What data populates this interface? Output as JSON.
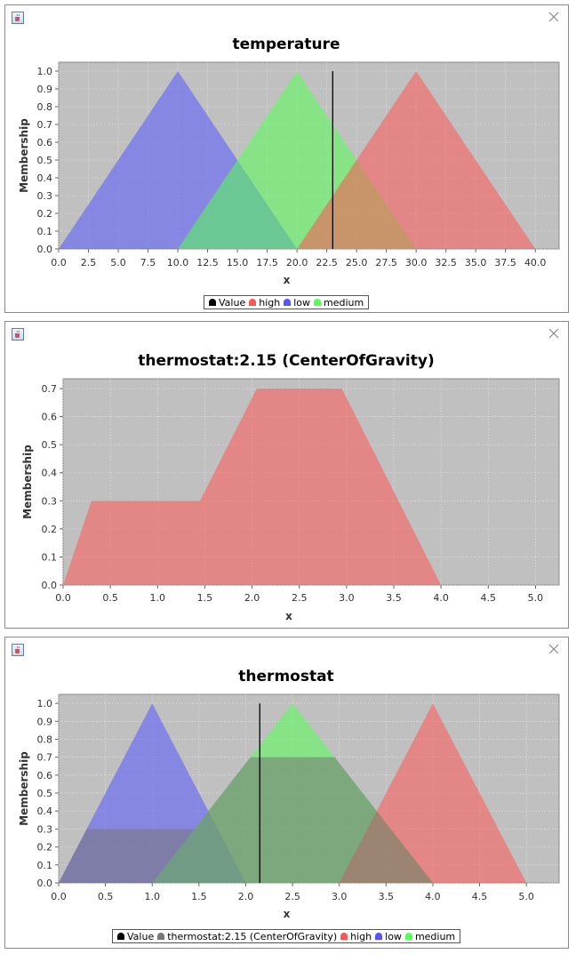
{
  "colors": {
    "high": "#ff5555",
    "low": "#5555ff",
    "medium": "#55ff55",
    "value": "#000000",
    "defuzz": "#777777",
    "plot_bg": "#c0c0c0"
  },
  "icons": {
    "window": "java-cup-icon",
    "close": "close-icon"
  },
  "chart_data": [
    {
      "type": "area",
      "title": "temperature",
      "xlabel": "x",
      "ylabel": "Membership",
      "xlim": [
        0,
        42
      ],
      "ylim": [
        0,
        1.05
      ],
      "x_ticks": [
        "0.0",
        "2.5",
        "5.0",
        "7.5",
        "10.0",
        "12.5",
        "15.0",
        "17.5",
        "20.0",
        "22.5",
        "25.0",
        "27.5",
        "30.0",
        "32.5",
        "35.0",
        "37.5",
        "40.0"
      ],
      "y_ticks": [
        "0.0",
        "0.1",
        "0.2",
        "0.3",
        "0.4",
        "0.5",
        "0.6",
        "0.7",
        "0.8",
        "0.9",
        "1.0"
      ],
      "series": [
        {
          "name": "low",
          "color_key": "low",
          "points": [
            [
              0,
              0
            ],
            [
              10,
              1
            ],
            [
              20,
              0
            ]
          ]
        },
        {
          "name": "medium",
          "color_key": "medium",
          "points": [
            [
              10,
              0
            ],
            [
              20,
              1
            ],
            [
              30,
              0
            ]
          ]
        },
        {
          "name": "high",
          "color_key": "high",
          "points": [
            [
              20,
              0
            ],
            [
              30,
              1
            ],
            [
              40,
              0
            ]
          ]
        }
      ],
      "value_line": {
        "x": 23,
        "y_top": 1.0
      },
      "legend": [
        {
          "label": "Value",
          "color_key": "value"
        },
        {
          "label": "high",
          "color_key": "high"
        },
        {
          "label": "low",
          "color_key": "low"
        },
        {
          "label": "medium",
          "color_key": "medium"
        }
      ]
    },
    {
      "type": "area",
      "title": "thermostat:2.15 (CenterOfGravity)",
      "xlabel": "x",
      "ylabel": "Membership",
      "xlim": [
        0,
        5.25
      ],
      "ylim": [
        0,
        0.735
      ],
      "x_ticks": [
        "0.0",
        "0.5",
        "1.0",
        "1.5",
        "2.0",
        "2.5",
        "3.0",
        "3.5",
        "4.0",
        "4.5",
        "5.0"
      ],
      "y_ticks": [
        "0.0",
        "0.1",
        "0.2",
        "0.3",
        "0.4",
        "0.5",
        "0.6",
        "0.7"
      ],
      "series": [
        {
          "name": "thermostat:2.15 (CenterOfGravity)",
          "color_key": "high",
          "points": [
            [
              0,
              0
            ],
            [
              0.3,
              0.3
            ],
            [
              1.45,
              0.3
            ],
            [
              2.05,
              0.7
            ],
            [
              2.95,
              0.7
            ],
            [
              4,
              0
            ]
          ]
        }
      ],
      "legend": []
    },
    {
      "type": "area",
      "title": "thermostat",
      "xlabel": "x",
      "ylabel": "Membership",
      "xlim": [
        0,
        5.35
      ],
      "ylim": [
        0,
        1.05
      ],
      "x_ticks": [
        "0.0",
        "0.5",
        "1.0",
        "1.5",
        "2.0",
        "2.5",
        "3.0",
        "3.5",
        "4.0",
        "4.5",
        "5.0"
      ],
      "y_ticks": [
        "0.0",
        "0.1",
        "0.2",
        "0.3",
        "0.4",
        "0.5",
        "0.6",
        "0.7",
        "0.8",
        "0.9",
        "1.0"
      ],
      "series": [
        {
          "name": "low",
          "color_key": "low",
          "points": [
            [
              0,
              0
            ],
            [
              1,
              1
            ],
            [
              2,
              0
            ]
          ]
        },
        {
          "name": "medium",
          "color_key": "medium",
          "points": [
            [
              1,
              0
            ],
            [
              2.5,
              1
            ],
            [
              4,
              0
            ]
          ]
        },
        {
          "name": "high",
          "color_key": "high",
          "points": [
            [
              3,
              0
            ],
            [
              4,
              1
            ],
            [
              5,
              0
            ]
          ]
        },
        {
          "name": "thermostat:2.15 (CenterOfGravity)",
          "color_key": "defuzz",
          "points": [
            [
              0,
              0
            ],
            [
              0.3,
              0.3
            ],
            [
              1.45,
              0.3
            ],
            [
              2.05,
              0.7
            ],
            [
              2.95,
              0.7
            ],
            [
              4,
              0
            ]
          ]
        }
      ],
      "value_line": {
        "x": 2.15,
        "y_top": 1.0
      },
      "legend": [
        {
          "label": "Value",
          "color_key": "value"
        },
        {
          "label": "thermostat:2.15 (CenterOfGravity)",
          "color_key": "defuzz"
        },
        {
          "label": "high",
          "color_key": "high"
        },
        {
          "label": "low",
          "color_key": "low"
        },
        {
          "label": "medium",
          "color_key": "medium"
        }
      ]
    }
  ]
}
